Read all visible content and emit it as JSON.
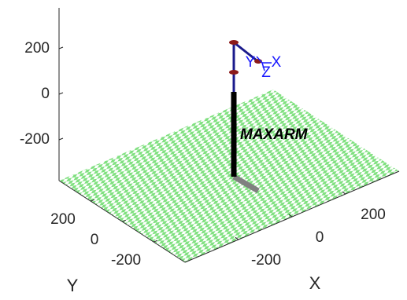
{
  "chart_data": {
    "type": "robot3d",
    "robot_name": "MAXARM",
    "frame_labels": [
      "Y",
      "Z",
      "X"
    ],
    "xlabel": "X",
    "ylabel": "Y",
    "xlim": [
      -400,
      400
    ],
    "ylim": [
      -400,
      400
    ],
    "zlim": [
      -380,
      380
    ],
    "xticks": [
      -200,
      0,
      200
    ],
    "yticks": [
      -200,
      0,
      200
    ],
    "zticks": [
      -200,
      0,
      200
    ]
  }
}
